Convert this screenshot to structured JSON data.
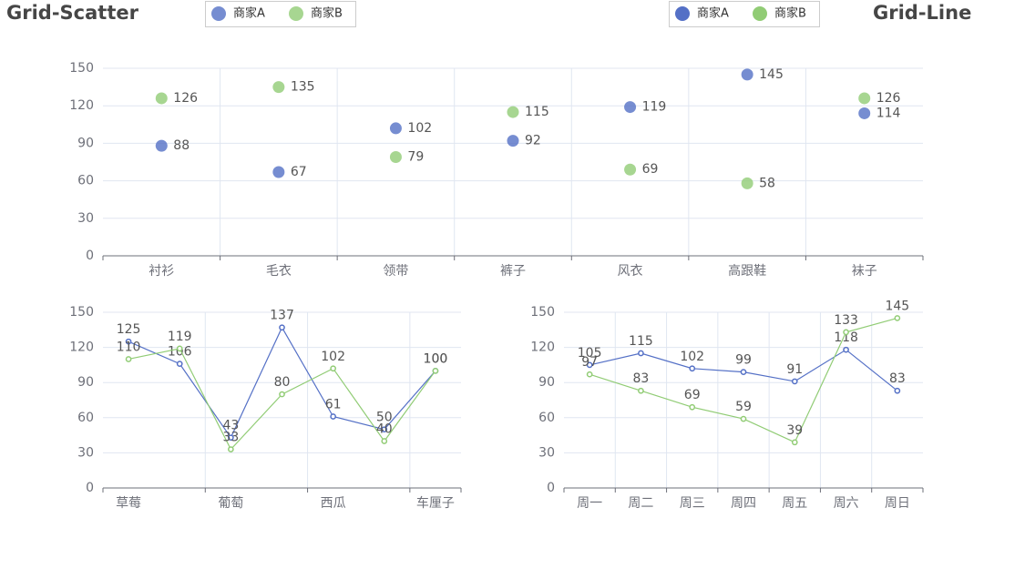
{
  "chart_data": [
    {
      "type": "scatter",
      "title": "Grid-Scatter",
      "categories": [
        "衬衫",
        "毛衣",
        "领带",
        "裤子",
        "风衣",
        "高跟鞋",
        "袜子"
      ],
      "series": [
        {
          "name": "商家A",
          "color": "#5470c6",
          "values": [
            88,
            67,
            102,
            92,
            119,
            145,
            114
          ]
        },
        {
          "name": "商家B",
          "color": "#91cc75",
          "values": [
            126,
            135,
            79,
            115,
            69,
            58,
            126
          ]
        }
      ],
      "ylim": [
        0,
        150
      ],
      "yticks": [
        0,
        30,
        60,
        90,
        120,
        150
      ],
      "grid": true
    },
    {
      "type": "line",
      "title": "Grid-Line",
      "categories": [
        "草莓",
        null,
        "葡萄",
        null,
        "西瓜",
        null,
        "车厘子"
      ],
      "series": [
        {
          "name": "商家A",
          "color": "#5470c6",
          "values": [
            125,
            106,
            43,
            137,
            61,
            50,
            100
          ]
        },
        {
          "name": "商家B",
          "color": "#91cc75",
          "values": [
            110,
            119,
            33,
            80,
            102,
            40,
            100
          ]
        }
      ],
      "ylim": [
        0,
        150
      ],
      "yticks": [
        0,
        30,
        60,
        90,
        120,
        150
      ],
      "grid": true
    },
    {
      "type": "line",
      "categories": [
        "周一",
        "周二",
        "周三",
        "周四",
        "周五",
        "周六",
        "周日"
      ],
      "series": [
        {
          "color": "#5470c6",
          "values": [
            105,
            115,
            102,
            99,
            91,
            118,
            83
          ]
        },
        {
          "color": "#91cc75",
          "values": [
            97,
            83,
            69,
            59,
            39,
            133,
            145
          ]
        }
      ],
      "ylim": [
        0,
        150
      ],
      "yticks": [
        0,
        30,
        60,
        90,
        120,
        150
      ],
      "grid": true
    }
  ]
}
